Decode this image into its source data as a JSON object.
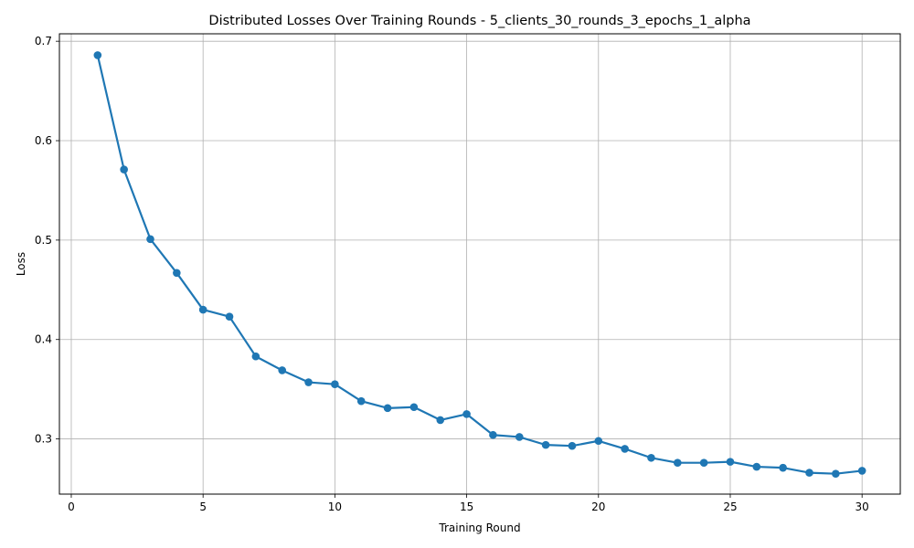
{
  "chart_data": {
    "type": "line",
    "title": "Distributed Losses Over Training Rounds  - 5_clients_30_rounds_3_epochs_1_alpha",
    "xlabel": "Training Round",
    "ylabel": "Loss",
    "xlim": [
      -0.45,
      31.45
    ],
    "ylim": [
      0.2445,
      0.7075
    ],
    "xticks": [
      0,
      5,
      10,
      15,
      20,
      25,
      30
    ],
    "yticks": [
      0.3,
      0.4,
      0.5,
      0.6,
      0.7
    ],
    "grid": true,
    "color": "#1f77b4",
    "series": [
      {
        "marker": "circle",
        "x": [
          1,
          2,
          3,
          4,
          5,
          6,
          7,
          8,
          9,
          10,
          11,
          12,
          13,
          14,
          15,
          16,
          17,
          18,
          19,
          20,
          21,
          22,
          23,
          24,
          25,
          26,
          27,
          28,
          29,
          30
        ],
        "y": [
          0.686,
          0.571,
          0.501,
          0.467,
          0.43,
          0.423,
          0.383,
          0.369,
          0.357,
          0.355,
          0.338,
          0.331,
          0.332,
          0.319,
          0.325,
          0.304,
          0.302,
          0.294,
          0.293,
          0.298,
          0.29,
          0.281,
          0.276,
          0.276,
          0.277,
          0.272,
          0.271,
          0.266,
          0.265,
          0.268
        ]
      }
    ]
  }
}
